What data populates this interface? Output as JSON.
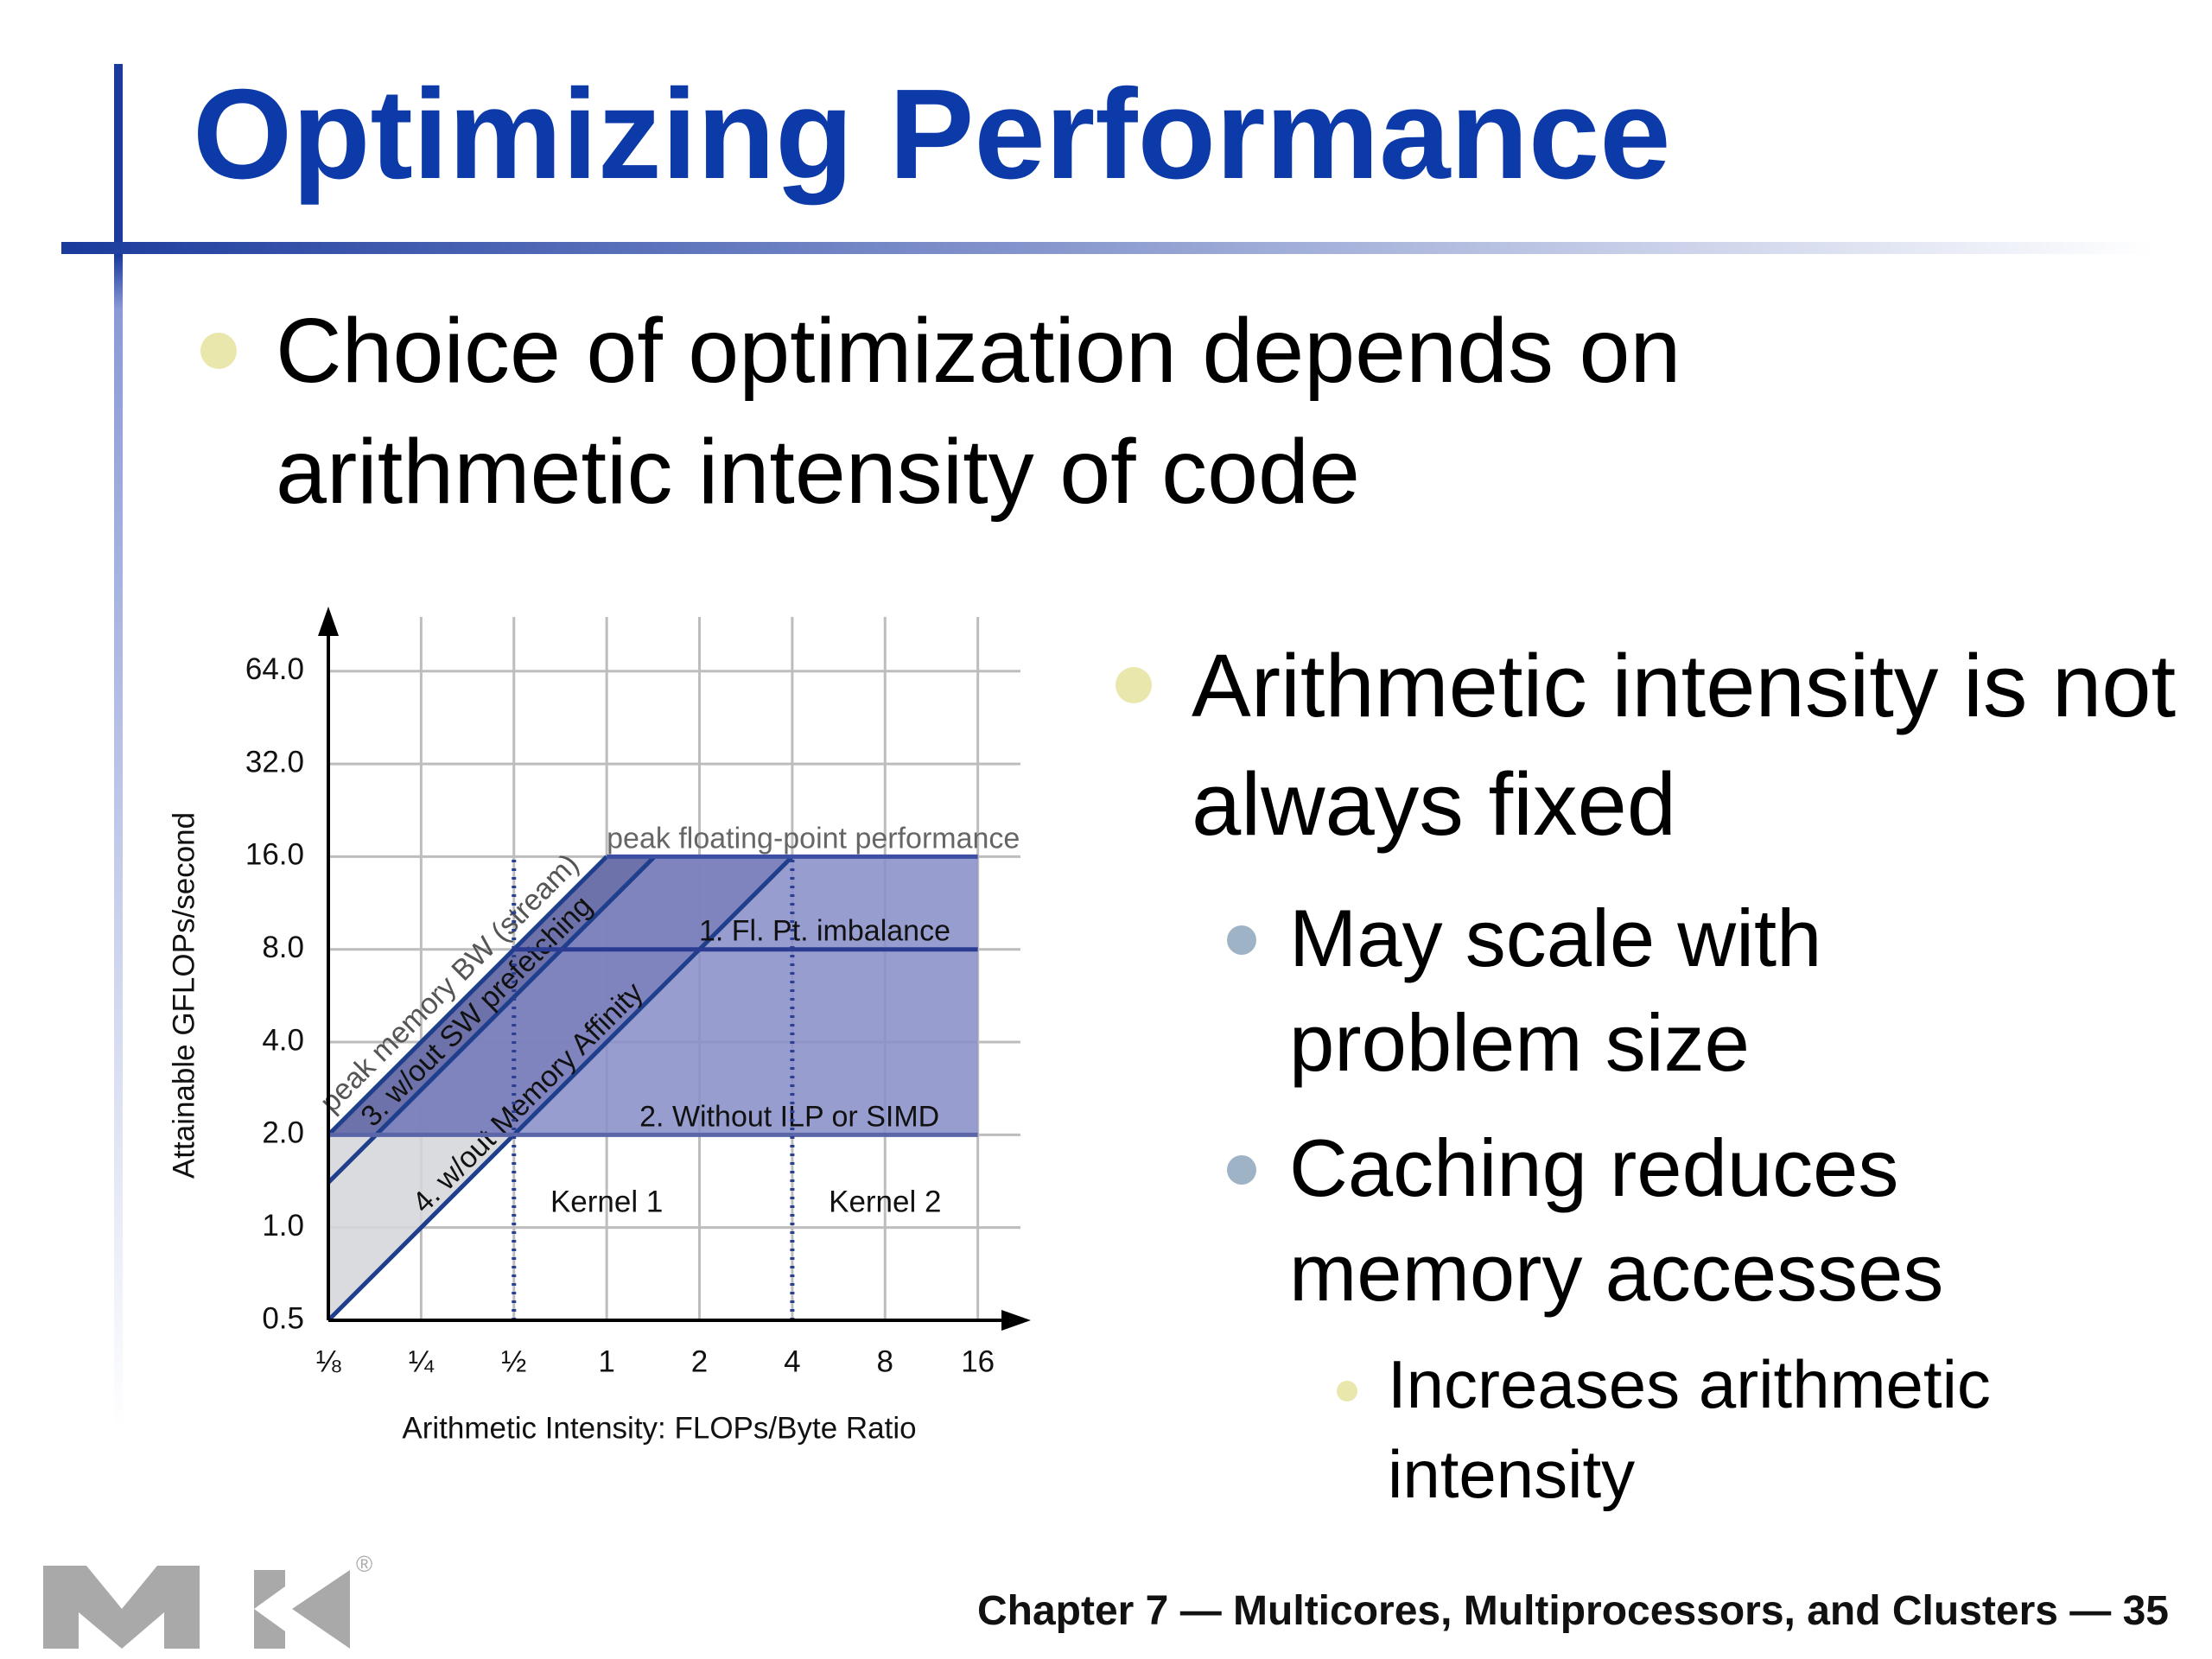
{
  "slide": {
    "title": "Optimizing Performance",
    "bullet": "Choice of optimization depends on arithmetic intensity of code",
    "side_bullet": {
      "text": "Arithmetic intensity is not always fixed",
      "children": [
        {
          "text": "May scale with problem size"
        },
        {
          "text": "Caching reduces memory accesses",
          "children": [
            {
              "text": "Increases arithmetic intensity"
            }
          ]
        }
      ]
    },
    "footer": "Chapter 7 — Multicores, Multiprocessors, and Clusters — 35",
    "logo_mark": "®"
  },
  "chart_data": {
    "type": "roofline",
    "x_label": "Arithmetic Intensity: FLOPs/Byte Ratio",
    "y_label": "Attainable GFLOPs/second",
    "log_x": true,
    "log_y": true,
    "grid": true,
    "xlim": [
      0.125,
      22
    ],
    "ylim": [
      0.5,
      96
    ],
    "xticks": [
      {
        "value": 0.125,
        "label": "⅛"
      },
      {
        "value": 0.25,
        "label": "¼"
      },
      {
        "value": 0.5,
        "label": "½"
      },
      1,
      2,
      4,
      8,
      16
    ],
    "yticks": [
      0.5,
      {
        "value": 1,
        "label": "1.0"
      },
      {
        "value": 2,
        "label": "2.0"
      },
      {
        "value": 4,
        "label": "4.0"
      },
      {
        "value": 8,
        "label": "8.0"
      },
      {
        "value": 16,
        "label": "16.0"
      },
      {
        "value": 32,
        "label": "32.0"
      },
      {
        "value": 64,
        "label": "64.0"
      }
    ],
    "series": [
      {
        "name": "peak memory BW (stream)",
        "color": "#1f3f8c",
        "x": [
          0.125,
          1
        ],
        "values": [
          2,
          16
        ]
      },
      {
        "name": "3. w/out SW prefetching",
        "color": "#1f3f8c",
        "x": [
          0.125,
          1.43
        ],
        "values": [
          1.4,
          16
        ]
      },
      {
        "name": "4. w/out Memory Affinity",
        "color": "#1f3f8c",
        "x": [
          0.125,
          4
        ],
        "values": [
          0.5,
          16
        ]
      },
      {
        "name": "peak floating-point performance",
        "color": "#3c4fa2",
        "x": [
          1,
          16
        ],
        "values": [
          16,
          16
        ]
      },
      {
        "name": "1. Fl. Pt. imbalance",
        "color": "#2a3c92",
        "x": [
          0.5,
          16
        ],
        "values": [
          8,
          8
        ]
      },
      {
        "name": "2. Without ILP or SIMD",
        "color": "#5a66a8",
        "x": [
          0.125,
          16
        ],
        "values": [
          2,
          2
        ]
      }
    ],
    "kernels": [
      {
        "name": "Kernel 1",
        "x": 0.5
      },
      {
        "name": "Kernel 2",
        "x": 4
      }
    ]
  }
}
